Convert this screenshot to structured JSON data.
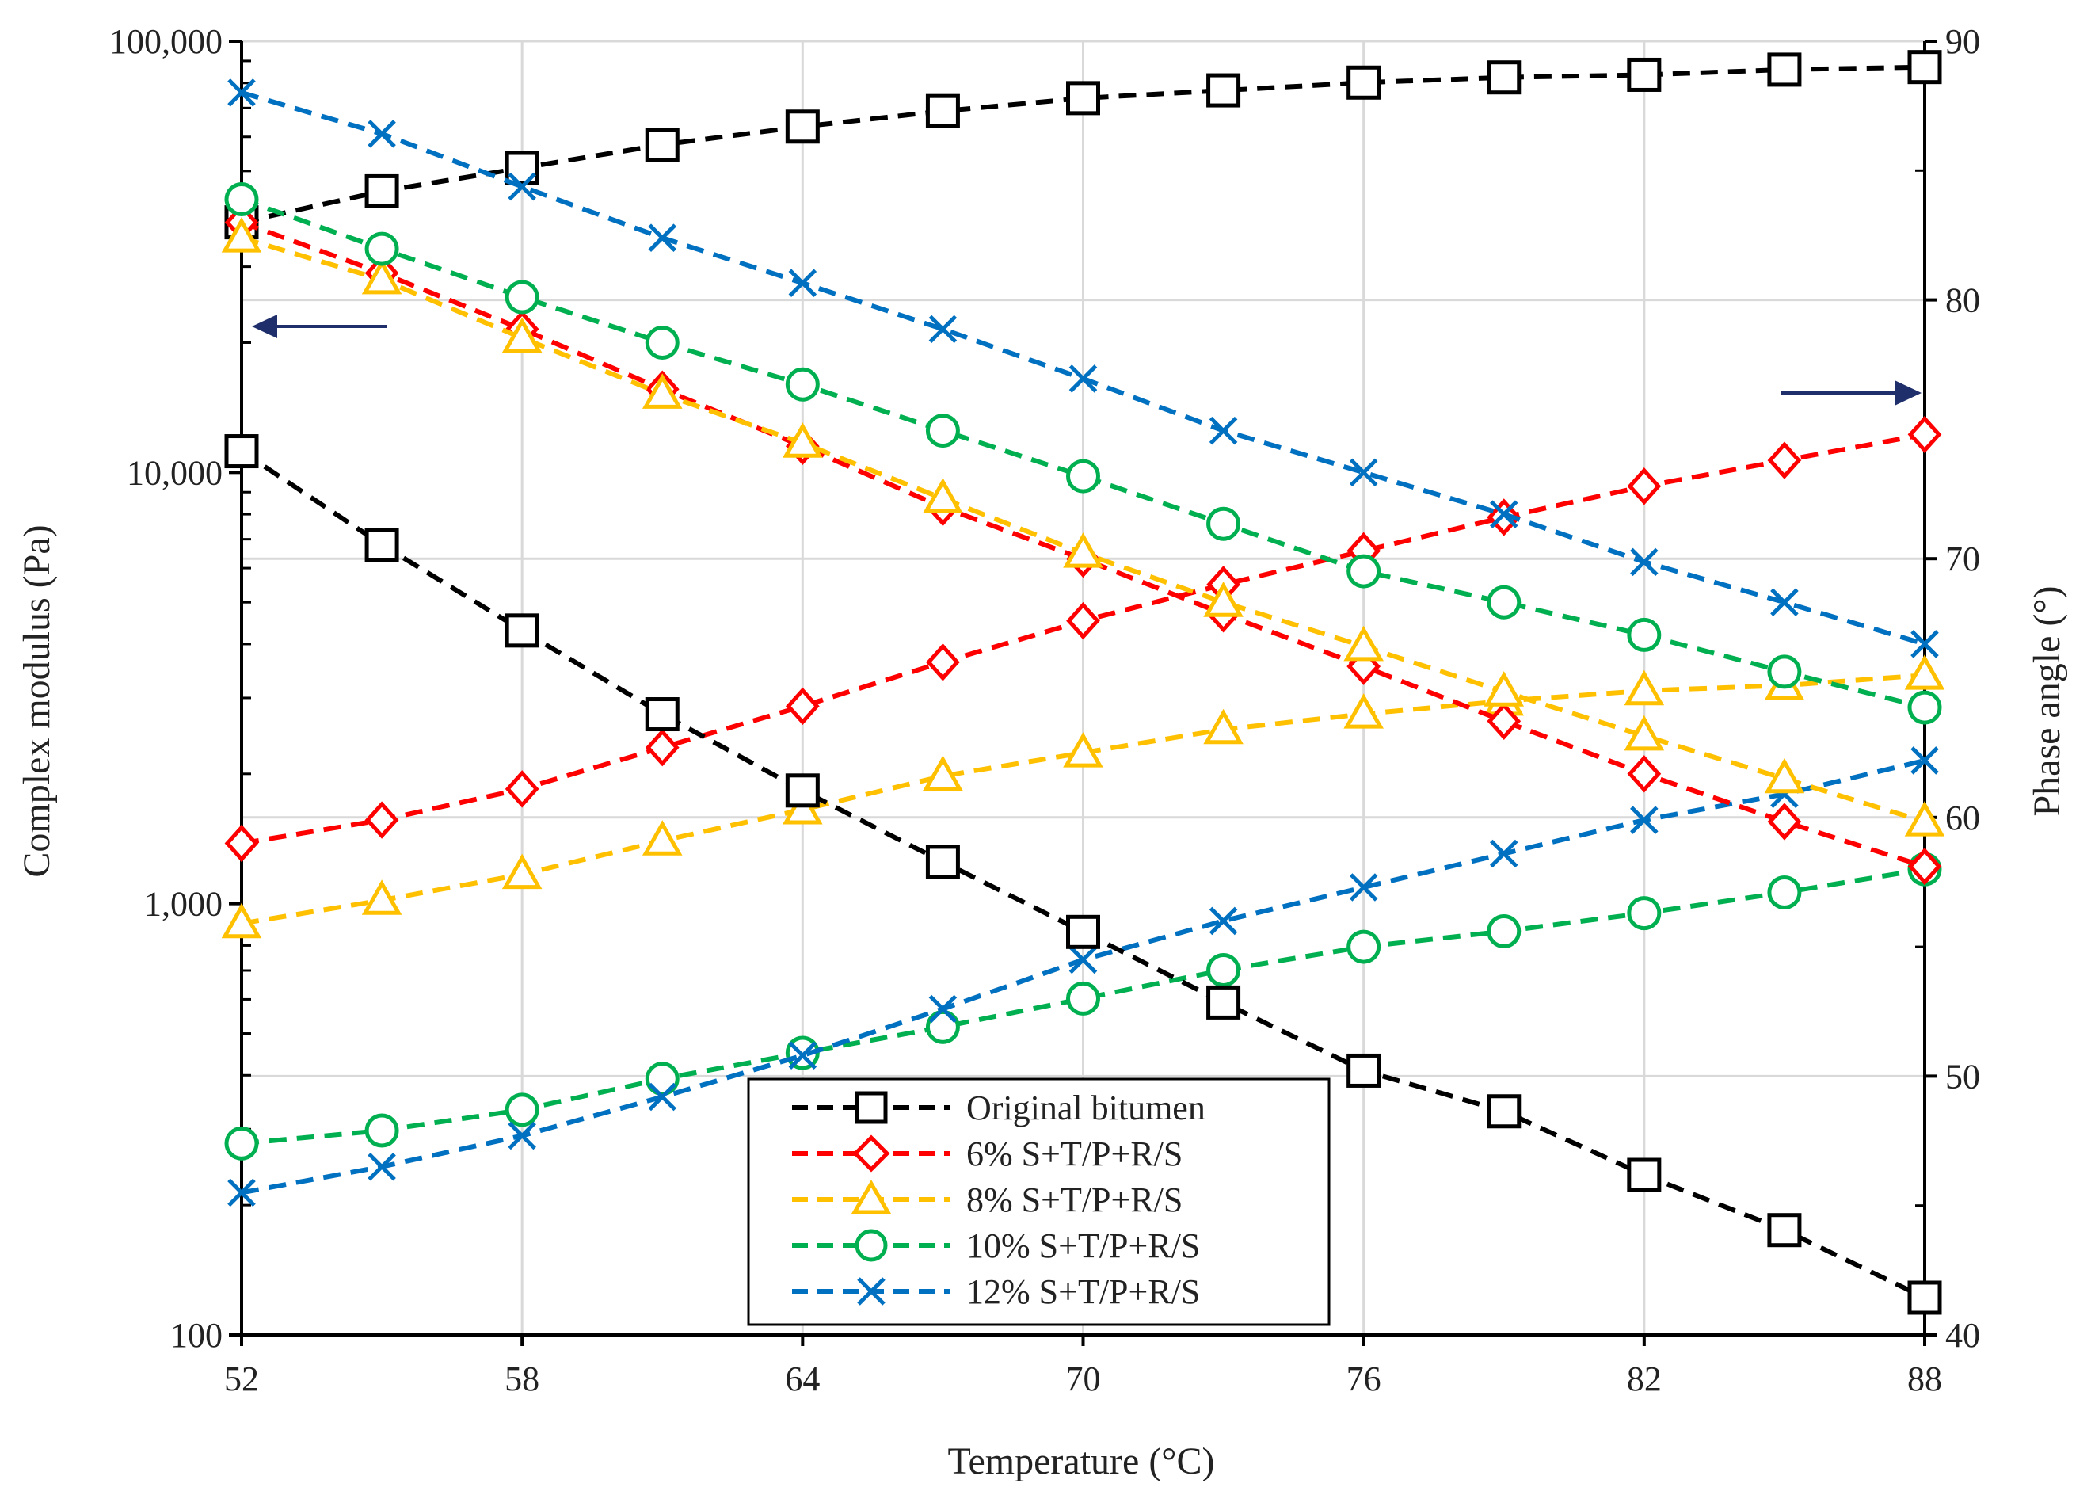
{
  "chart_data": {
    "type": "line",
    "title": "",
    "xlabel": "Temperature (°C)",
    "ylabel_left": "Complex modulus (Pa)",
    "ylabel_right": "Phase angle (°)",
    "xlim": [
      52,
      88
    ],
    "x_ticks": [
      52,
      58,
      64,
      70,
      76,
      82,
      88
    ],
    "x_tick_labels": [
      "52",
      "58",
      "64",
      "70",
      "76",
      "82",
      "88"
    ],
    "ylim_left": [
      100,
      100000
    ],
    "yscale_left": "log",
    "y_left_ticks": [
      100,
      1000,
      10000,
      100000
    ],
    "y_left_tick_labels": [
      "100",
      "1,000",
      "10,000",
      "100,000"
    ],
    "ylim_right": [
      40,
      90
    ],
    "y_right_ticks": [
      40,
      50,
      60,
      70,
      80,
      90
    ],
    "y_right_tick_labels": [
      "40",
      "50",
      "60",
      "70",
      "80",
      "90"
    ],
    "grid": true,
    "legend_position": "bottom-center",
    "x": [
      52,
      55,
      58,
      61,
      64,
      67,
      70,
      73,
      76,
      79,
      82,
      85,
      88
    ],
    "series": [
      {
        "name": "Original bitumen",
        "color": "#000000",
        "marker": "square",
        "complex_modulus": [
          11200,
          6800,
          4300,
          2750,
          1830,
          1250,
          860,
          590,
          410,
          330,
          235,
          175,
          122
        ],
        "phase_angle": [
          83.0,
          84.2,
          85.1,
          86.0,
          86.7,
          87.3,
          87.8,
          88.1,
          88.4,
          88.6,
          88.7,
          88.9,
          89.0
        ]
      },
      {
        "name": "6% S+T/P+R/S",
        "color": "#ff0000",
        "marker": "diamond",
        "complex_modulus": [
          38000,
          29000,
          21500,
          15600,
          11500,
          8300,
          6300,
          4700,
          3550,
          2650,
          2000,
          1550,
          1220
        ],
        "phase_angle": [
          59.0,
          59.9,
          61.1,
          62.7,
          64.3,
          66.0,
          67.6,
          69.0,
          70.3,
          71.6,
          72.8,
          73.8,
          74.8
        ]
      },
      {
        "name": "8% S+T/P+R/S",
        "color": "#ffc000",
        "marker": "triangle",
        "complex_modulus": [
          35000,
          28000,
          20500,
          15200,
          11700,
          8700,
          6500,
          5000,
          3950,
          3100,
          2450,
          1950,
          1550
        ],
        "phase_angle": [
          55.9,
          56.8,
          57.8,
          59.1,
          60.3,
          61.6,
          62.5,
          63.4,
          64.0,
          64.5,
          64.9,
          65.1,
          65.5
        ]
      },
      {
        "name": "10% S+T/P+R/S",
        "color": "#00b050",
        "marker": "circle",
        "complex_modulus": [
          43000,
          33000,
          25500,
          20000,
          16000,
          12500,
          9800,
          7600,
          5900,
          5000,
          4200,
          3450,
          2850
        ],
        "phase_angle": [
          47.4,
          47.9,
          48.7,
          49.9,
          50.9,
          51.9,
          53.0,
          54.1,
          55.0,
          55.6,
          56.3,
          57.1,
          58.0
        ]
      },
      {
        "name": "12% S+T/P+R/S",
        "color": "#0070c0",
        "marker": "x",
        "complex_modulus": [
          76000,
          61000,
          46000,
          35000,
          27500,
          21500,
          16500,
          12500,
          10000,
          8000,
          6200,
          5000,
          4000
        ],
        "phase_angle": [
          45.5,
          46.5,
          47.7,
          49.2,
          50.8,
          52.6,
          54.5,
          56.0,
          57.3,
          58.6,
          59.9,
          60.9,
          62.2
        ]
      }
    ],
    "annotations": [
      {
        "type": "arrow",
        "direction": "left",
        "meaning": "curves belong to left axis (Complex modulus)"
      },
      {
        "type": "arrow",
        "direction": "right",
        "meaning": "curves belong to right axis (Phase angle)"
      }
    ]
  },
  "colors": {
    "grid": "#d9d9d9",
    "axis": "#000000",
    "arrow": "#1f2f6b"
  }
}
